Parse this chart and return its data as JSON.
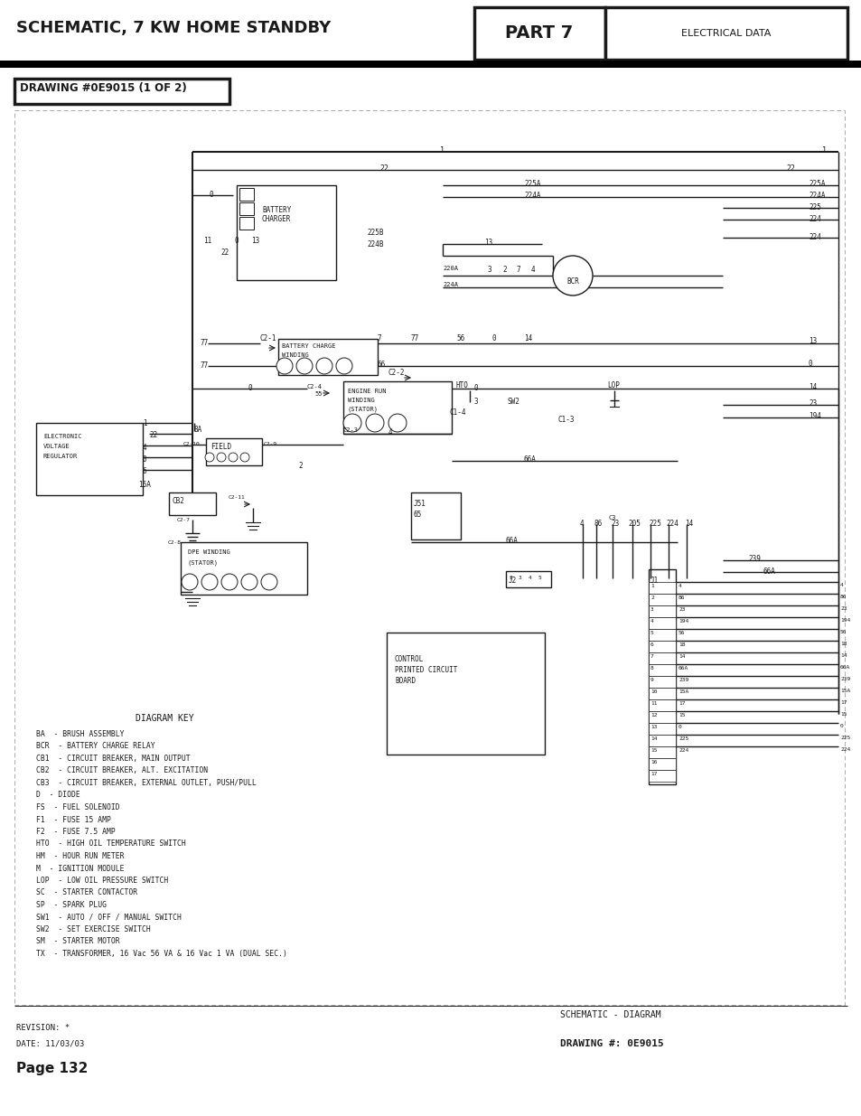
{
  "page_title": "SCHEMATIC, 7 KW HOME STANDBY",
  "part_label": "PART 7",
  "part_sublabel": "ELECTRICAL DATA",
  "drawing_number": "DRAWING #0E9015 (1 OF 2)",
  "footer_type": "SCHEMATIC - DIAGRAM",
  "footer_drawing": "DRAWING #: 0E9015",
  "revision": "REVISION: *",
  "date": "DATE: 11/03/03",
  "page": "Page 132",
  "bg_color": "#ffffff",
  "diagram_key_lines": [
    "BA  - BRUSH ASSEMBLY",
    "BCR  - BATTERY CHARGE RELAY",
    "CB1  - CIRCUIT BREAKER, MAIN OUTPUT",
    "CB2  - CIRCUIT BREAKER, ALT. EXCITATION",
    "CB3  - CIRCUIT BREAKER, EXTERNAL OUTLET, PUSH/PULL",
    "D  - DIODE",
    "FS  - FUEL SOLENOID",
    "F1  - FUSE 15 AMP",
    "F2  - FUSE 7.5 AMP",
    "HTO  - HIGH OIL TEMPERATURE SWITCH",
    "HM  - HOUR RUN METER",
    "M  - IGNITION MODULE",
    "LOP  - LOW OIL PRESSURE SWITCH",
    "SC  - STARTER CONTACTOR",
    "SP  - SPARK PLUG",
    "SW1  - AUTO / OFF / MANUAL SWITCH",
    "SW2  - SET EXERCISE SWITCH",
    "SM  - STARTER MOTOR",
    "TX  - TRANSFORMER, 16 Vac 56 VA & 16 Vac 1 VA (DUAL SEC.)"
  ]
}
